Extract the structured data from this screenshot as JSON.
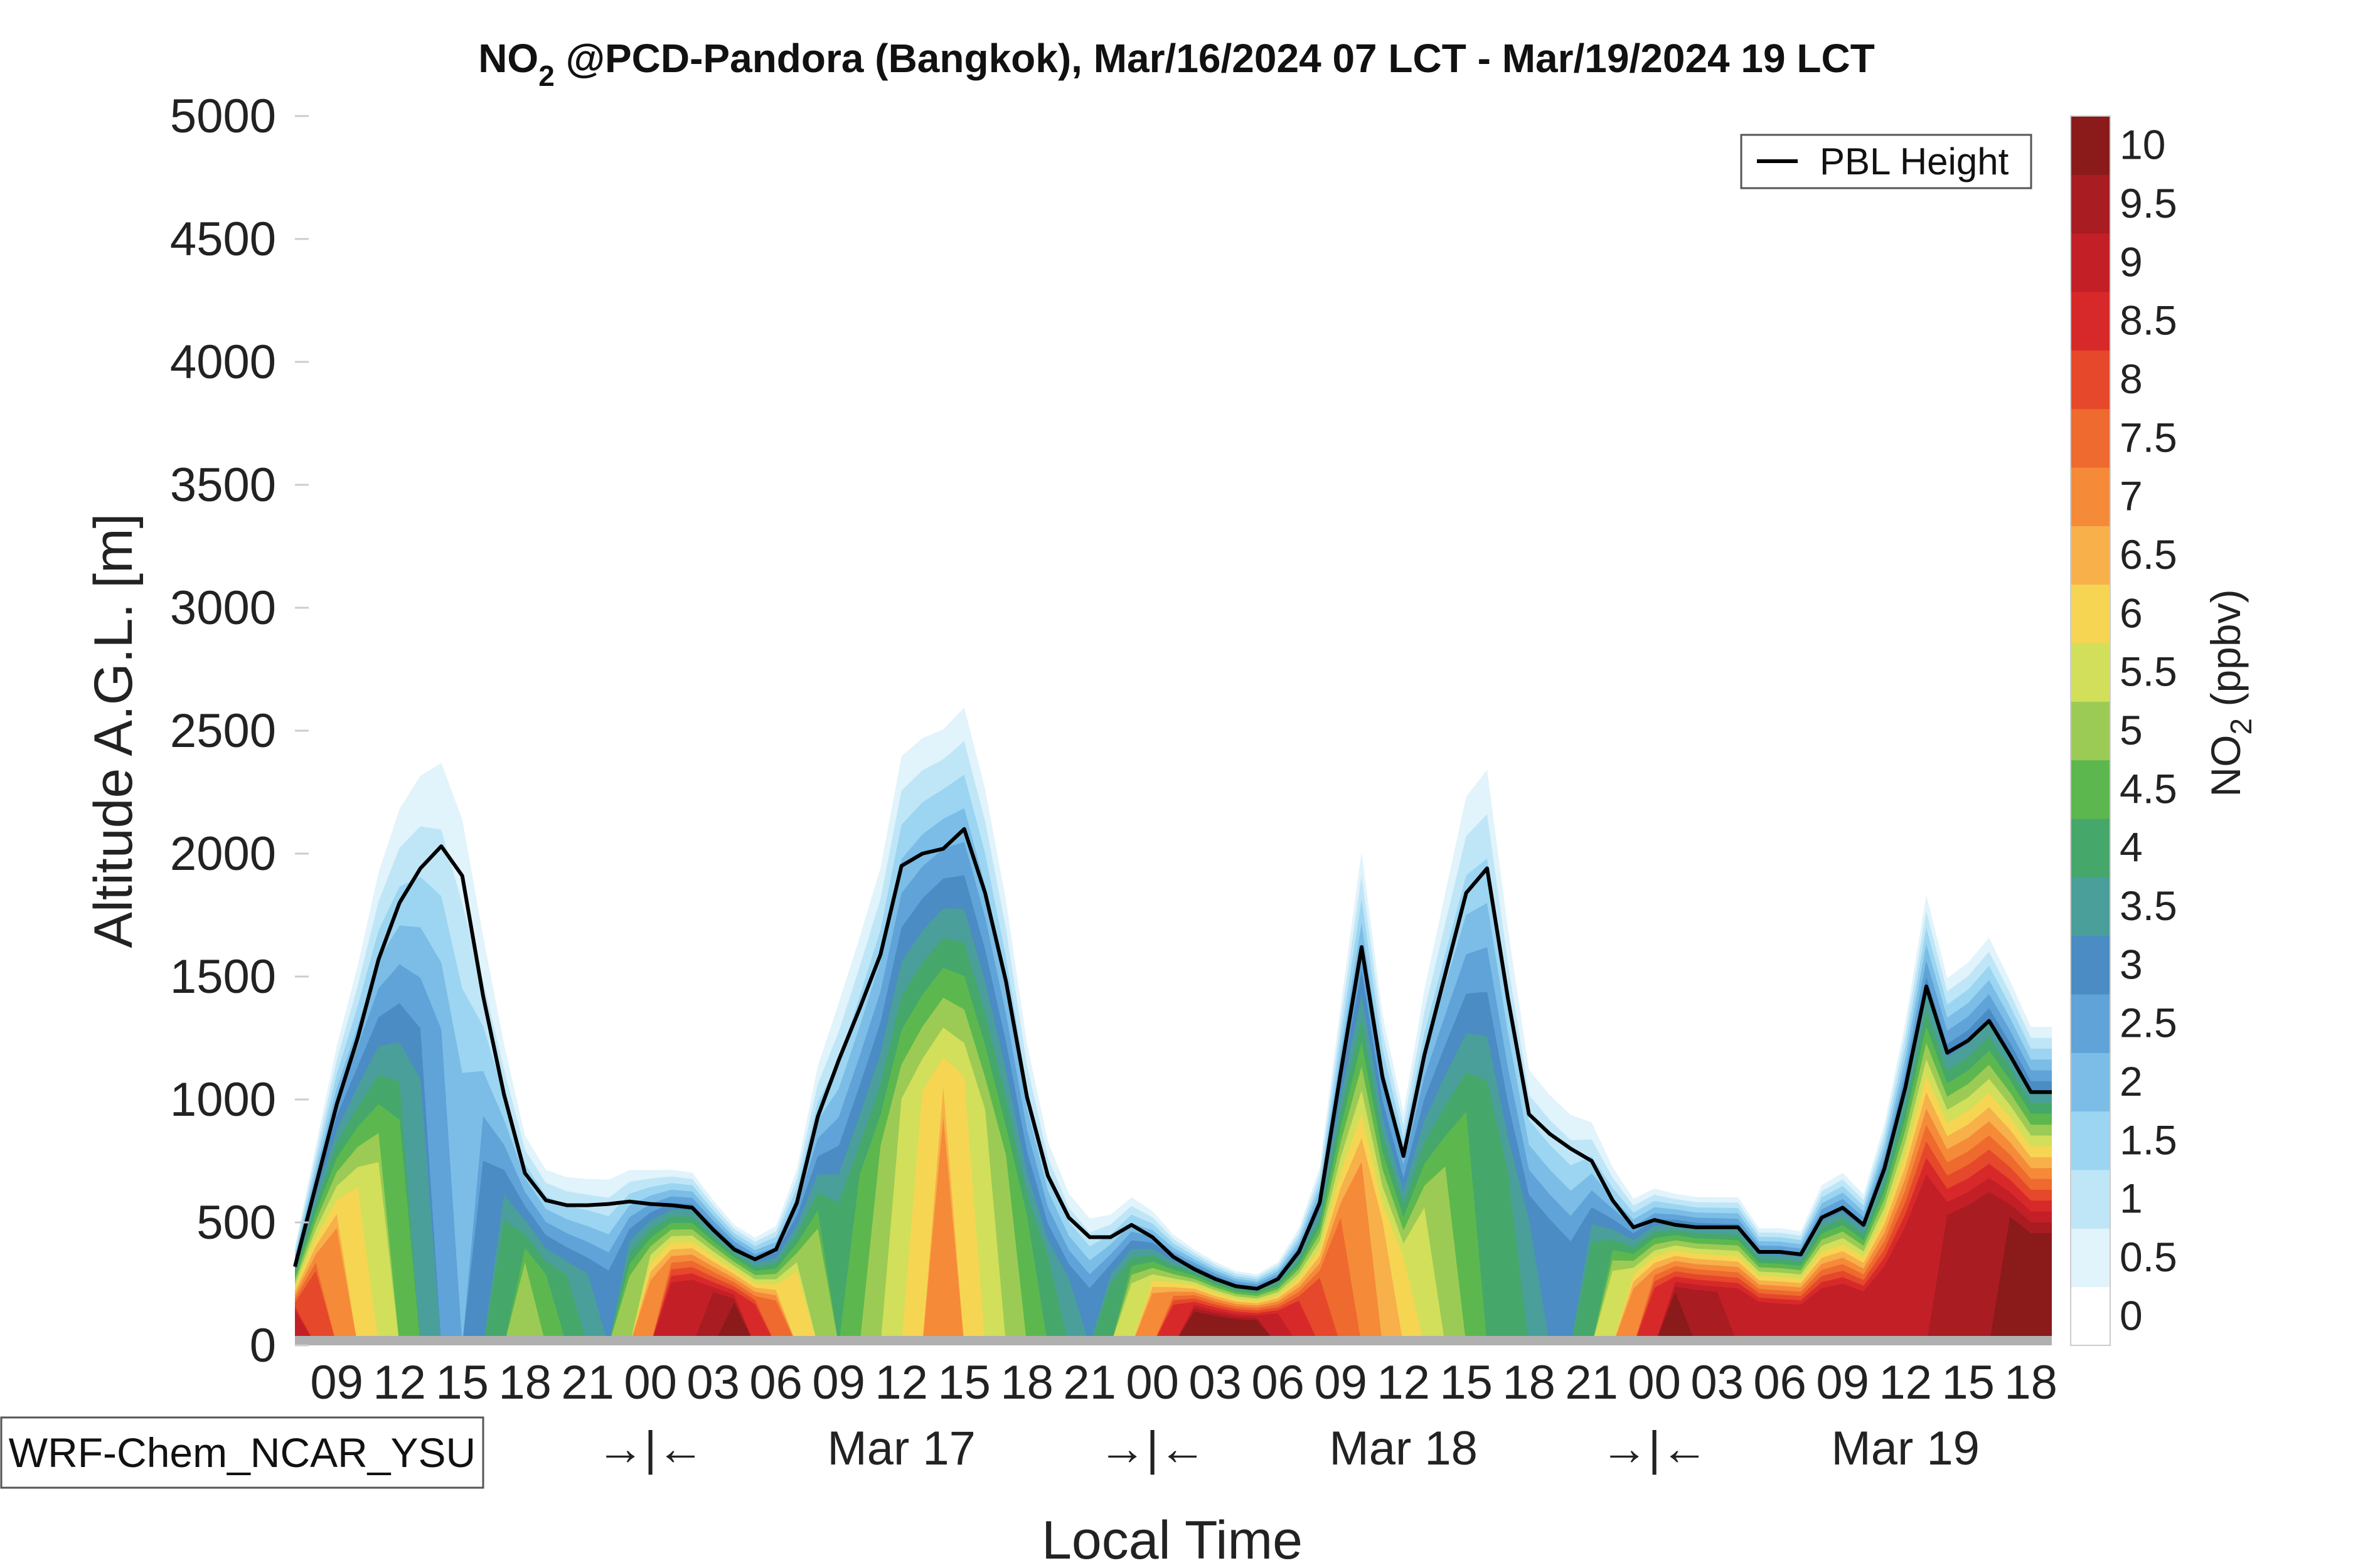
{
  "chart_data": {
    "type": "heatmap",
    "title_prefix": "NO",
    "title_sub": "2",
    "title_suffix": " @PCD-Pandora (Bangkok), Mar/16/2024 07 LCT - Mar/19/2024 19 LCT",
    "xlabel": "Local Time",
    "ylabel": "Altitude A.G.L. [m]",
    "ylim": [
      0,
      5000
    ],
    "yticks": [
      0,
      500,
      1000,
      1500,
      2000,
      2500,
      3000,
      3500,
      4000,
      4500,
      5000
    ],
    "x_start_hour": 7,
    "x_end_hour": 91,
    "hour_tick_labels": [
      "09",
      "12",
      "15",
      "18",
      "21",
      "00",
      "03",
      "06",
      "09",
      "12",
      "15",
      "18",
      "21",
      "00",
      "03",
      "06",
      "09",
      "12",
      "15",
      "18",
      "21",
      "00",
      "03",
      "06",
      "09",
      "12",
      "15",
      "18"
    ],
    "day_labels": [
      {
        "text": "→|←",
        "hour": 24
      },
      {
        "text": "Mar 17",
        "hour": 36
      },
      {
        "text": "→|←",
        "hour": 48
      },
      {
        "text": "Mar 18",
        "hour": 60
      },
      {
        "text": "→|←",
        "hour": 72
      },
      {
        "text": "Mar 19",
        "hour": 84
      }
    ],
    "colorbar": {
      "label_prefix": "NO",
      "label_sub": "2",
      "label_suffix": " (ppbv)",
      "levels": [
        0,
        0.5,
        1,
        1.5,
        2,
        2.5,
        3,
        3.5,
        4,
        4.5,
        5,
        5.5,
        6,
        6.5,
        7,
        7.5,
        8,
        8.5,
        9,
        9.5,
        10
      ],
      "tick_labels": [
        "0",
        "0.5",
        "1",
        "1.5",
        "2",
        "2.5",
        "3",
        "3.5",
        "4",
        "4.5",
        "5",
        "5.5",
        "6",
        "6.5",
        "7",
        "7.5",
        "8",
        "8.5",
        "9",
        "9.5",
        "10"
      ],
      "colors": [
        "#ffffff",
        "#e1f3fb",
        "#bfe6f7",
        "#9bd5f1",
        "#7bbde6",
        "#5fa3d8",
        "#4a8cc3",
        "#4a9f9a",
        "#45a86a",
        "#5cb84e",
        "#9ccb55",
        "#d2df5a",
        "#f6d552",
        "#f7b04a",
        "#f58a38",
        "#ee6a2e",
        "#e5482a",
        "#d8292a",
        "#c31f27",
        "#a81c22",
        "#8b1a1a"
      ]
    },
    "pbl_height": {
      "legend": "PBL Height",
      "hours": [
        7,
        8,
        9,
        10,
        11,
        12,
        13,
        14,
        15,
        16,
        17,
        18,
        19,
        20,
        21,
        22,
        23,
        24,
        25,
        26,
        27,
        28,
        29,
        30,
        31,
        32,
        33,
        34,
        35,
        36,
        37,
        38,
        39,
        40,
        41,
        42,
        43,
        44,
        45,
        46,
        47,
        48,
        49,
        50,
        51,
        52,
        53,
        54,
        55,
        56,
        57,
        58,
        59,
        60,
        61,
        62,
        63,
        64,
        65,
        66,
        67,
        68,
        69,
        70,
        71,
        72,
        73,
        74,
        75,
        76,
        77,
        78,
        79,
        80,
        81,
        82,
        83,
        84,
        85,
        86,
        87,
        88,
        89,
        90,
        91
      ],
      "values": [
        320,
        650,
        980,
        1250,
        1570,
        1800,
        1940,
        2030,
        1910,
        1420,
        1020,
        700,
        590,
        570,
        570,
        575,
        585,
        575,
        570,
        560,
        470,
        390,
        350,
        390,
        580,
        930,
        1160,
        1370,
        1590,
        1950,
        2000,
        2020,
        2100,
        1840,
        1480,
        1010,
        690,
        520,
        440,
        440,
        490,
        440,
        360,
        310,
        270,
        240,
        230,
        270,
        380,
        580,
        1110,
        1620,
        1090,
        770,
        1180,
        1510,
        1840,
        1940,
        1410,
        940,
        860,
        800,
        750,
        590,
        480,
        510,
        490,
        480,
        480,
        480,
        380,
        380,
        370,
        520,
        560,
        490,
        720,
        1050,
        1460,
        1190,
        1240,
        1320,
        1180,
        1030,
        1030
      ]
    },
    "no2_surface_peaks": [
      {
        "hour": 7,
        "value": 9
      },
      {
        "hour": 15,
        "value": 2
      },
      {
        "hour": 18,
        "value": 5
      },
      {
        "hour": 22,
        "value": 3
      },
      {
        "hour": 25,
        "value": 9
      },
      {
        "hour": 28,
        "value": 10
      },
      {
        "hour": 33,
        "value": 4
      },
      {
        "hour": 38,
        "value": 7
      },
      {
        "hour": 45,
        "value": 3
      },
      {
        "hour": 50,
        "value": 10
      },
      {
        "hour": 53,
        "value": 10
      },
      {
        "hour": 58,
        "value": 7
      },
      {
        "hour": 62,
        "value": 5
      },
      {
        "hour": 68,
        "value": 3
      },
      {
        "hour": 73,
        "value": 10
      },
      {
        "hour": 78,
        "value": 9
      },
      {
        "hour": 83,
        "value": 9
      },
      {
        "hour": 89,
        "value": 10
      }
    ],
    "model_label": "WRF-Chem_NCAR_YSU"
  }
}
